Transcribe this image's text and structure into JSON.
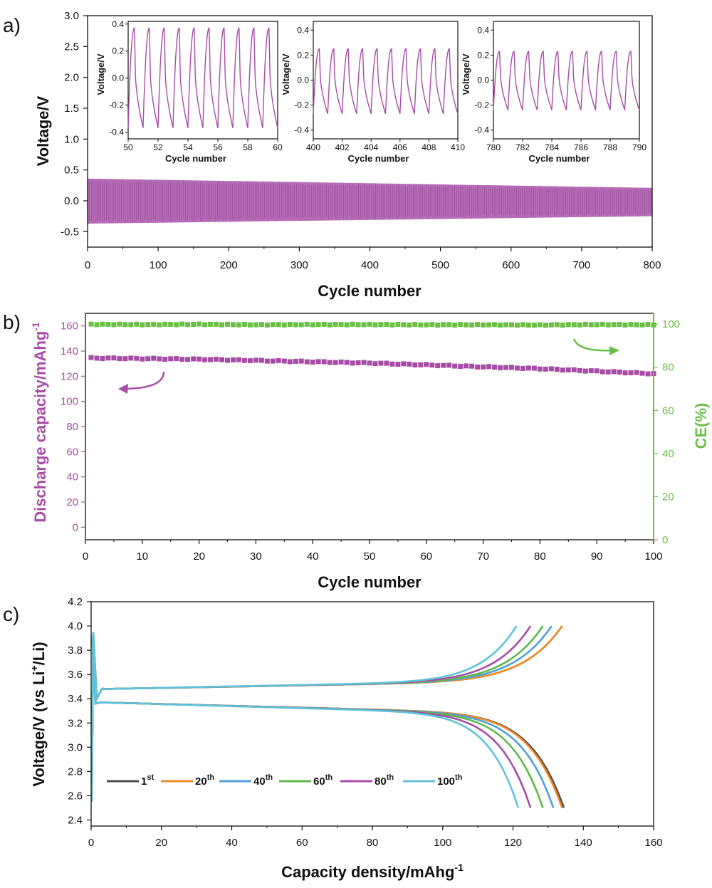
{
  "chart_data": [
    {
      "id": "a",
      "panel_label": "a)",
      "type": "line",
      "xlabel": "Cycle number",
      "ylabel": "Voltage/V",
      "xlim": [
        0,
        800
      ],
      "ylim": [
        -0.75,
        3.0
      ],
      "xticks": [
        0,
        100,
        200,
        300,
        400,
        500,
        600,
        700,
        800
      ],
      "yticks": [
        -0.5,
        0.0,
        0.5,
        1.0,
        1.5,
        2.0,
        2.5,
        3.0
      ],
      "ytick_labels": [
        "-0.5",
        "0.0",
        "0.5",
        "1.0",
        "1.5",
        "2.0",
        "2.5",
        "3.0"
      ],
      "color": "#a64ca6",
      "band": {
        "x": [
          0,
          800
        ],
        "upper": [
          0.36,
          0.21
        ],
        "lower": [
          -0.37,
          -0.25
        ]
      },
      "insets": [
        {
          "xlim": [
            50,
            60
          ],
          "ylim": [
            -0.45,
            0.42
          ],
          "xticks": [
            50,
            52,
            54,
            56,
            58,
            60
          ],
          "yticks": [
            -0.4,
            -0.2,
            0.0,
            0.2,
            0.4
          ],
          "ytick_labels": [
            "-0.4",
            "-0.2",
            "0.0",
            "0.2",
            "0.4"
          ],
          "peak": 0.37,
          "trough": -0.37,
          "xlabel": "Cycle number",
          "ylabel": "Voltage/V"
        },
        {
          "xlim": [
            400,
            410
          ],
          "ylim": [
            -0.47,
            0.47
          ],
          "xticks": [
            400,
            402,
            404,
            406,
            408,
            410
          ],
          "yticks": [
            -0.4,
            -0.2,
            0.0,
            0.2,
            0.4
          ],
          "ytick_labels": [
            "-0.4",
            "-0.2",
            "0.0",
            "0.2",
            "0.4"
          ],
          "peak": 0.25,
          "trough": -0.27,
          "xlabel": "Cycle number",
          "ylabel": "Voltage/V"
        },
        {
          "xlim": [
            780,
            790
          ],
          "ylim": [
            -0.47,
            0.47
          ],
          "xticks": [
            780,
            782,
            784,
            786,
            788,
            790
          ],
          "yticks": [
            -0.4,
            -0.2,
            0.0,
            0.2,
            0.4
          ],
          "ytick_labels": [
            "-0.4",
            "-0.2",
            "0.0",
            "0.2",
            "0.4"
          ],
          "peak": 0.23,
          "trough": -0.24,
          "xlabel": "Cycle number",
          "ylabel": "Voltage/V"
        }
      ]
    },
    {
      "id": "b",
      "panel_label": "b)",
      "type": "scatter",
      "xlabel": "Cycle number",
      "ylabel": "Discharge capacity/mAhg",
      "ylabel_sup": "-1",
      "y2label": "CE(%)",
      "xlim": [
        0,
        100
      ],
      "ylim": [
        -10,
        170
      ],
      "y2lim": [
        0,
        105
      ],
      "xticks": [
        0,
        10,
        20,
        30,
        40,
        50,
        60,
        70,
        80,
        90,
        100
      ],
      "yticks": [
        0,
        20,
        40,
        60,
        80,
        100,
        120,
        140,
        160
      ],
      "y2ticks": [
        0,
        20,
        40,
        60,
        80,
        100
      ],
      "series": [
        {
          "name": "Discharge capacity",
          "axis": "left",
          "color": "#a64ca6",
          "x": [
            1,
            10,
            20,
            30,
            40,
            50,
            60,
            70,
            80,
            90,
            100
          ],
          "values": [
            134.5,
            134.0,
            133.5,
            132.5,
            131.5,
            130.5,
            129.0,
            127.5,
            126.0,
            124.0,
            122.0
          ]
        },
        {
          "name": "CE",
          "axis": "right",
          "color": "#6abf45",
          "x": [
            1,
            10,
            20,
            30,
            40,
            50,
            60,
            70,
            80,
            90,
            100
          ],
          "values": [
            99.9,
            99.8,
            99.9,
            99.7,
            99.8,
            99.8,
            99.7,
            99.7,
            99.6,
            99.8,
            99.7
          ]
        }
      ]
    },
    {
      "id": "c",
      "panel_label": "c)",
      "type": "line",
      "xlabel": "Capacity density/mAhg",
      "xlabel_sup": "-1",
      "ylabel_pre": "Voltage/V (vs Li",
      "ylabel_sup": "+",
      "ylabel_post": "/Li)",
      "xlim": [
        0,
        160
      ],
      "ylim": [
        2.35,
        4.2
      ],
      "xticks": [
        0,
        20,
        40,
        60,
        80,
        100,
        120,
        140,
        160
      ],
      "yticks": [
        2.4,
        2.6,
        2.8,
        3.0,
        3.2,
        3.4,
        3.6,
        3.8,
        4.0,
        4.2
      ],
      "ytick_labels": [
        "2.4",
        "2.6",
        "2.8",
        "3.0",
        "3.2",
        "3.4",
        "3.6",
        "3.8",
        "4.0",
        "4.2"
      ],
      "series": [
        {
          "name": "1",
          "sup": "st",
          "color": "#4d4d4d",
          "charge_end": 134.0,
          "discharge_end": 134.5
        },
        {
          "name": "20",
          "sup": "th",
          "color": "#f08a24",
          "charge_end": 134.0,
          "discharge_end": 134.0
        },
        {
          "name": "40",
          "sup": "th",
          "color": "#4f9fd8",
          "charge_end": 131.0,
          "discharge_end": 131.5
        },
        {
          "name": "60",
          "sup": "th",
          "color": "#5fb84a",
          "charge_end": 128.5,
          "discharge_end": 128.5
        },
        {
          "name": "80",
          "sup": "th",
          "color": "#a64ca6",
          "charge_end": 125.0,
          "discharge_end": 125.0
        },
        {
          "name": "100",
          "sup": "th",
          "color": "#5ec4da",
          "charge_end": 121.0,
          "discharge_end": 121.5
        }
      ]
    }
  ]
}
